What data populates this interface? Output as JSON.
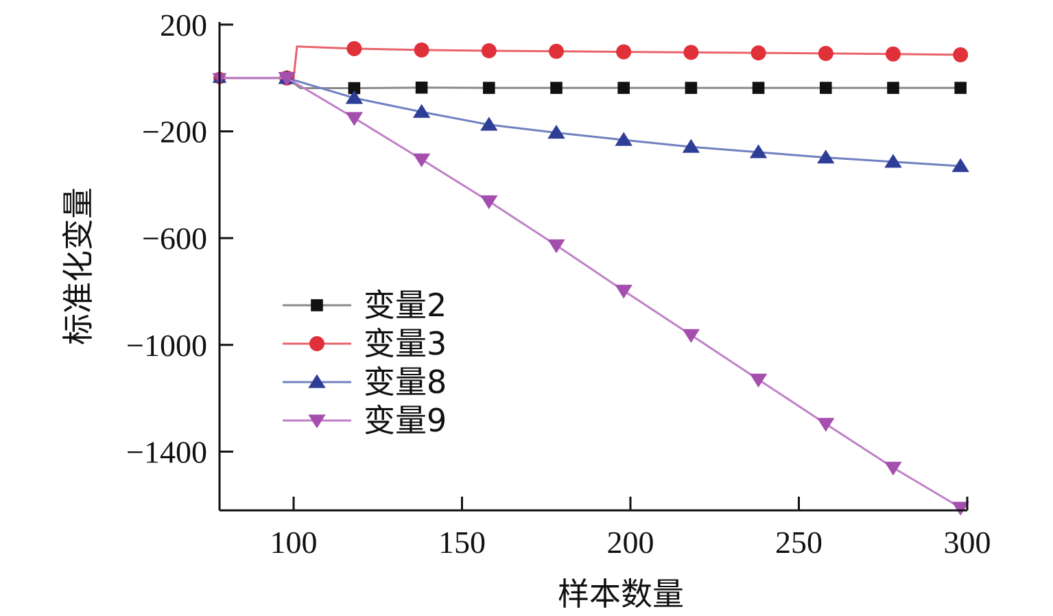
{
  "chart_data": {
    "type": "line",
    "title": "",
    "xlabel": "样本数量",
    "ylabel": "标准化变量",
    "xlim": [
      78,
      300
    ],
    "ylim": [
      -1620,
      210
    ],
    "xticks": [
      100,
      150,
      200,
      250,
      300
    ],
    "yticks": [
      200,
      -200,
      -600,
      -1000,
      -1400
    ],
    "ytick_labels": [
      "200",
      "−200",
      "−600",
      "−1000",
      "−1400"
    ],
    "grid": false,
    "legend": "center-left",
    "series": [
      {
        "name": "变量2",
        "color": "#111111",
        "line_color": "#8a8a8a",
        "marker": "square",
        "x": [
          78,
          98,
          102,
          118,
          138,
          158,
          178,
          198,
          218,
          238,
          258,
          278,
          298
        ],
        "y": [
          0,
          0,
          -38,
          -38,
          -36,
          -37,
          -37,
          -37,
          -37,
          -37,
          -37,
          -37,
          -37
        ],
        "markers_x": [
          98,
          118,
          138,
          158,
          178,
          198,
          218,
          238,
          258,
          278,
          298
        ]
      },
      {
        "name": "变量3",
        "color": "#e0303a",
        "line_color": "#e8636a",
        "marker": "circle",
        "x": [
          78,
          98,
          100,
          101,
          118,
          138,
          158,
          178,
          198,
          218,
          238,
          258,
          278,
          298
        ],
        "y": [
          0,
          0,
          0,
          118,
          110,
          105,
          102,
          100,
          98,
          96,
          94,
          92,
          90,
          87
        ],
        "markers_x": [
          98,
          118,
          138,
          158,
          178,
          198,
          218,
          238,
          258,
          278,
          298
        ]
      },
      {
        "name": "变量8",
        "color": "#2e3e96",
        "line_color": "#7080c0",
        "marker": "triangle-up",
        "x": [
          78,
          98,
          118,
          138,
          158,
          178,
          198,
          218,
          238,
          258,
          278,
          298
        ],
        "y": [
          0,
          0,
          -75,
          -127,
          -175,
          -205,
          -232,
          -258,
          -278,
          -298,
          -314,
          -330
        ],
        "markers_x": [
          98,
          118,
          138,
          158,
          178,
          198,
          218,
          238,
          258,
          278,
          298
        ]
      },
      {
        "name": "变量9",
        "color": "#a44fae",
        "line_color": "#c080c8",
        "marker": "triangle-down",
        "x": [
          78,
          98,
          118,
          138,
          158,
          178,
          198,
          218,
          238,
          258,
          278,
          298
        ],
        "y": [
          0,
          0,
          -150,
          -305,
          -462,
          -627,
          -797,
          -963,
          -1130,
          -1296,
          -1460,
          -1610
        ],
        "markers_x": [
          98,
          118,
          138,
          158,
          178,
          198,
          218,
          238,
          258,
          278,
          298
        ]
      }
    ]
  }
}
